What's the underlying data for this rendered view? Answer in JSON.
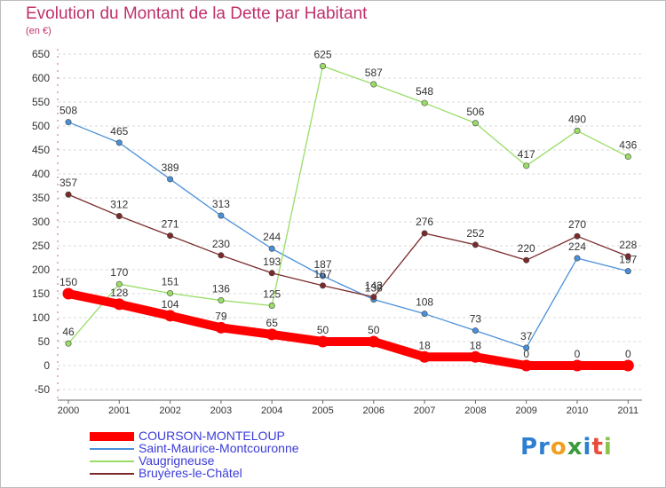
{
  "header": {
    "title": "Evolution du Montant de la Dette par Habitant",
    "unit": "(en €)"
  },
  "logo": {
    "text": "Proxiti",
    "parts": [
      {
        "text": "Pr",
        "color": "#2f7fd1"
      },
      {
        "text": "o",
        "color": "#f0a020"
      },
      {
        "text": "x",
        "color": "#3a9a3a"
      },
      {
        "text": "i",
        "color": "#2f7fd1"
      },
      {
        "text": "t",
        "color": "#e74c3c"
      },
      {
        "text": "i",
        "color": "#8bc34a"
      }
    ]
  },
  "chart_data": {
    "type": "line",
    "title": "Evolution du Montant de la Dette par Habitant",
    "ylabel": "(en €)",
    "xlabel": "",
    "x": [
      "2000",
      "2001",
      "2002",
      "2003",
      "2004",
      "2005",
      "2006",
      "2007",
      "2008",
      "2009",
      "2010",
      "2011"
    ],
    "ylim": [
      -50,
      650
    ],
    "yticks": [
      -50,
      0,
      50,
      100,
      150,
      200,
      250,
      300,
      350,
      400,
      450,
      500,
      550,
      600,
      650
    ],
    "grid": "horizontal dashed",
    "legend_position": "bottom-left",
    "series": [
      {
        "name": "COURSON-MONTELOUP",
        "color": "#ff0000",
        "highlight": true,
        "values": [
          150,
          128,
          104,
          79,
          65,
          50,
          50,
          18,
          18,
          0,
          0,
          0
        ]
      },
      {
        "name": "Saint-Maurice-Montcouronne",
        "color": "#4a90d9",
        "values": [
          508,
          465,
          389,
          313,
          244,
          187,
          138,
          108,
          73,
          37,
          224,
          197
        ]
      },
      {
        "name": "Vaugrigneuse",
        "color": "#99dd66",
        "values": [
          46,
          170,
          151,
          136,
          125,
          625,
          587,
          548,
          506,
          417,
          490,
          436
        ]
      },
      {
        "name": "Bruyères-le-Châtel",
        "color": "#7a2a2a",
        "values": [
          357,
          312,
          271,
          230,
          193,
          167,
          143,
          276,
          252,
          220,
          270,
          228
        ]
      }
    ]
  }
}
